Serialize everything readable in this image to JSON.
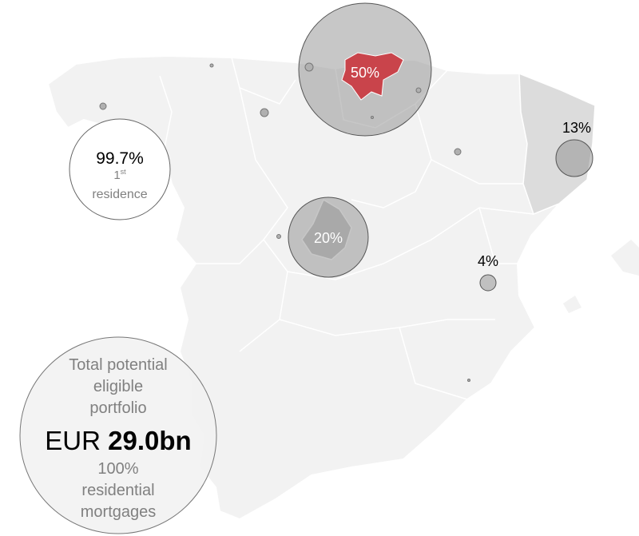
{
  "regions": [
    {
      "label": "50%"
    },
    {
      "label": "20%"
    },
    {
      "label": "13%"
    },
    {
      "label": "4%"
    }
  ],
  "residence": {
    "value": "99.7%",
    "ordinal": "1",
    "suffix": "st",
    "text": "residence"
  },
  "portfolio": {
    "line1": "Total potential",
    "line2": "eligible",
    "line3": "portfolio",
    "currency": "EUR",
    "amount": "29.0bn",
    "share": "100%",
    "line4": "residential",
    "line5": "mortgages"
  }
}
